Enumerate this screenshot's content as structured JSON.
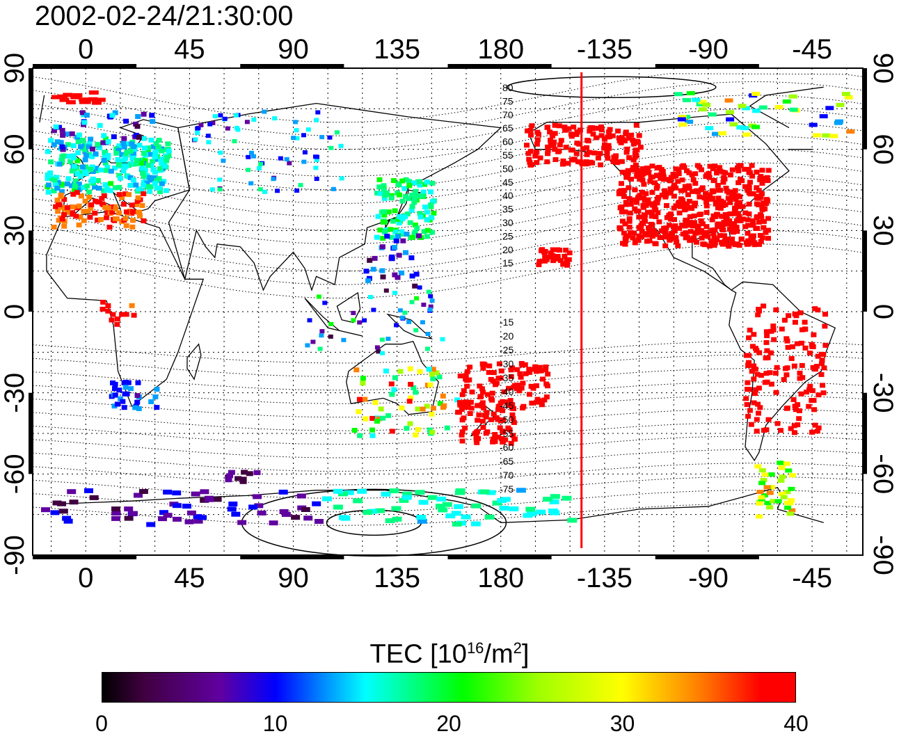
{
  "title": "2002-02-24/21:30:00",
  "map": {
    "top_lon_labels": [
      "0",
      "45",
      "90",
      "135",
      "180",
      "-135",
      "-90",
      "-45"
    ],
    "bottom_lon_labels": [
      "0",
      "45",
      "90",
      "135",
      "180",
      "-135",
      "-90",
      "-45"
    ],
    "left_lat_labels": [
      "90",
      "60",
      "30",
      "0",
      "-30",
      "-60",
      "-90"
    ],
    "right_lat_labels": [
      "90",
      "60",
      "30",
      "0",
      "-30",
      "-60",
      "-90"
    ],
    "contour_labels_north": [
      "80",
      "75",
      "70",
      "65",
      "60",
      "55",
      "50",
      "45",
      "40",
      "35",
      "30",
      "25",
      "20",
      "15"
    ],
    "contour_labels_south": [
      "-15",
      "-20",
      "-25",
      "-30",
      "-35",
      "-40",
      "-45",
      "-50",
      "-55",
      "-60",
      "-65",
      "-70",
      "-75"
    ],
    "terminator_longitude": -145,
    "lon_range": [
      -23,
      337
    ],
    "lat_range": [
      -90,
      90
    ]
  },
  "colorbar": {
    "title_prefix": "TEC  [10",
    "title_sup1": "16",
    "title_mid": "/m",
    "title_sup2": "2",
    "title_suffix": "]",
    "tick_labels": [
      "0",
      "10",
      "20",
      "30",
      "40"
    ],
    "range": [
      0,
      40
    ],
    "colors": [
      "#000000",
      "#400040",
      "#6000a0",
      "#0000ff",
      "#00a0ff",
      "#00ffff",
      "#00ff80",
      "#00ff00",
      "#a0ff00",
      "#ffff00",
      "#ff8000",
      "#ff0000"
    ]
  }
}
